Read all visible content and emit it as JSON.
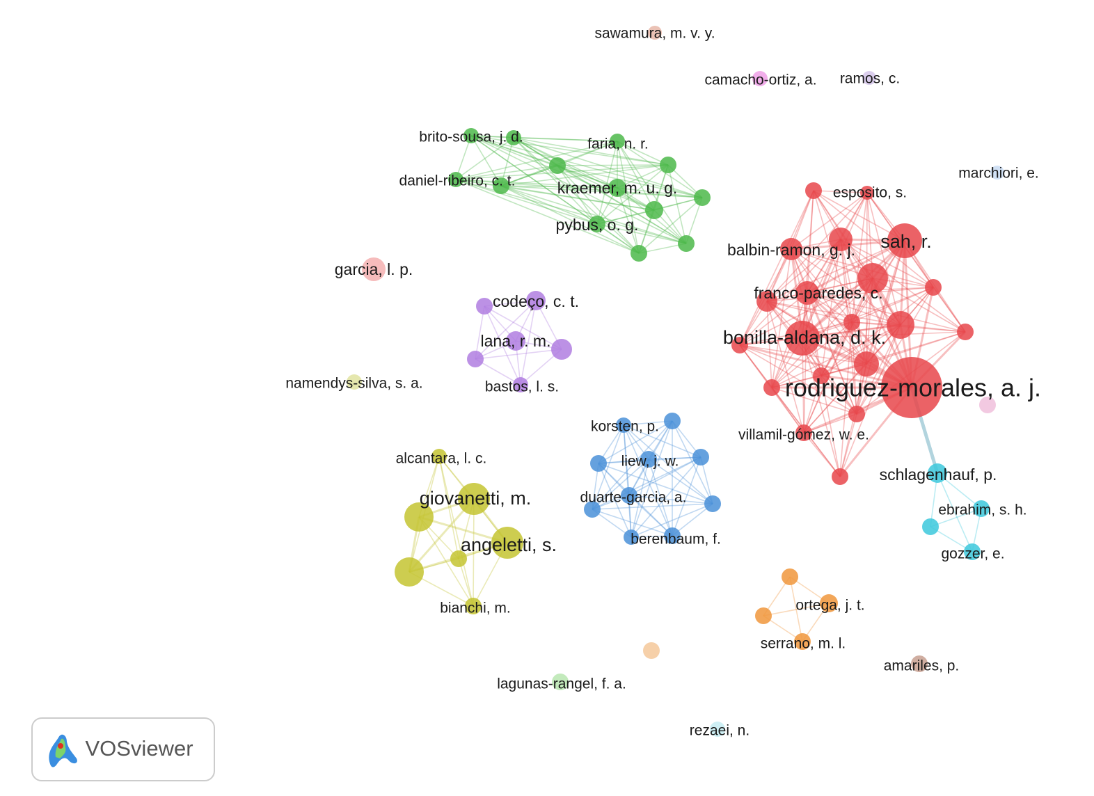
{
  "nodes": [
    {
      "label": "sawamura, m. v. y."
    },
    {
      "label": "camacho-ortiz, a."
    },
    {
      "label": "ramos, c."
    },
    {
      "label": "brito-sousa, j. d."
    },
    {
      "label": "daniel-ribeiro, c. t."
    },
    {
      "label": "faria, n. r."
    },
    {
      "label": "kraemer, m. u. g."
    },
    {
      "label": "pybus, o. g."
    },
    {
      "label": "marchiori, e."
    },
    {
      "label": "esposito, s."
    },
    {
      "label": "sah, r."
    },
    {
      "label": "balbin-ramon, g. j."
    },
    {
      "label": "garcia, l. p."
    },
    {
      "label": "franco-paredes, c."
    },
    {
      "label": "codeço, c. t."
    },
    {
      "label": "bonilla-aldana, d. k."
    },
    {
      "label": "lana, r. m."
    },
    {
      "label": "namendys-silva, s. a."
    },
    {
      "label": "bastos, l. s."
    },
    {
      "label": "rodriguez-morales, a. j."
    },
    {
      "label": "korsten, p."
    },
    {
      "label": "villamil-gómez, w. e."
    },
    {
      "label": "alcantara, l. c."
    },
    {
      "label": "liew, j. w."
    },
    {
      "label": "schlagenhauf, p."
    },
    {
      "label": "giovanetti, m."
    },
    {
      "label": "duarte-garcia, a."
    },
    {
      "label": "ebrahim, s. h."
    },
    {
      "label": "angeletti, s."
    },
    {
      "label": "berenbaum, f."
    },
    {
      "label": "gozzer, e."
    },
    {
      "label": "ortega, j. t."
    },
    {
      "label": "bianchi, m."
    },
    {
      "label": "serrano, m. l."
    },
    {
      "label": "amariles, p."
    },
    {
      "label": "lagunas-rangel, f. a."
    },
    {
      "label": "rezaei, n."
    }
  ],
  "logo": {
    "text": "VOSviewer"
  }
}
